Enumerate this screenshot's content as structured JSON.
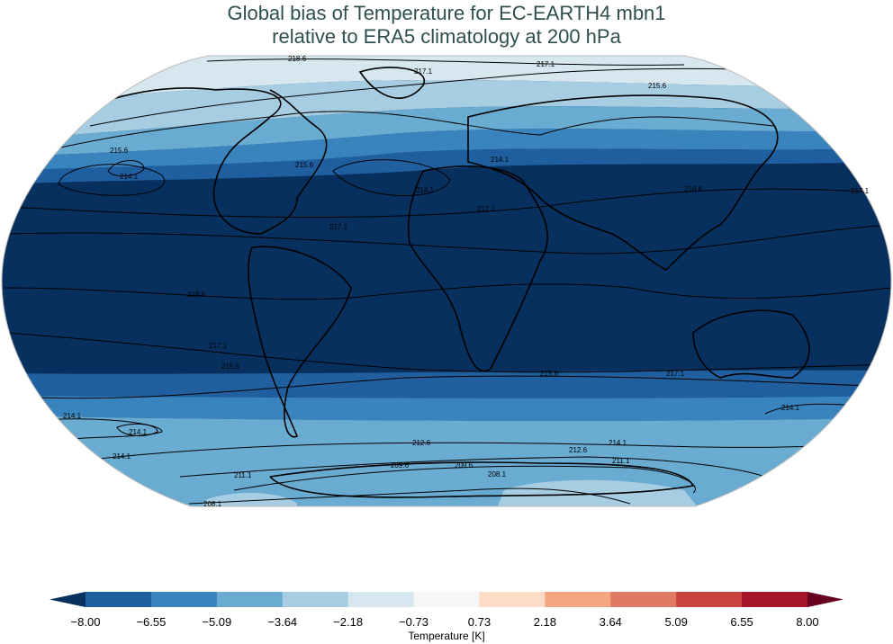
{
  "title": {
    "line1": "Global bias of Temperature for EC-EARTH4 mbn1",
    "line2": "relative to ERA5 climatology at 200 hPa"
  },
  "map": {
    "projection": "Robinson",
    "contour_color": "#000000",
    "contour_labels": [
      "218.6",
      "217.1",
      "215.6",
      "214.1",
      "212.6",
      "211.1",
      "209.6",
      "208.1"
    ]
  },
  "colorbar": {
    "label": "Temperature [K]",
    "ticks": [
      "−8.00",
      "−6.55",
      "−5.09",
      "−3.64",
      "−2.18",
      "−0.73",
      "0.73",
      "2.18",
      "3.64",
      "5.09",
      "6.55",
      "8.00"
    ],
    "colors": [
      "#1f5fa0",
      "#3a84bd",
      "#6aabd2",
      "#a7cde3",
      "#d6e7f0",
      "#f7f7f7",
      "#fddbc7",
      "#f4a582",
      "#e07a62",
      "#c9423f",
      "#a51429"
    ],
    "under_color": "#08305e",
    "over_color": "#67001f"
  }
}
